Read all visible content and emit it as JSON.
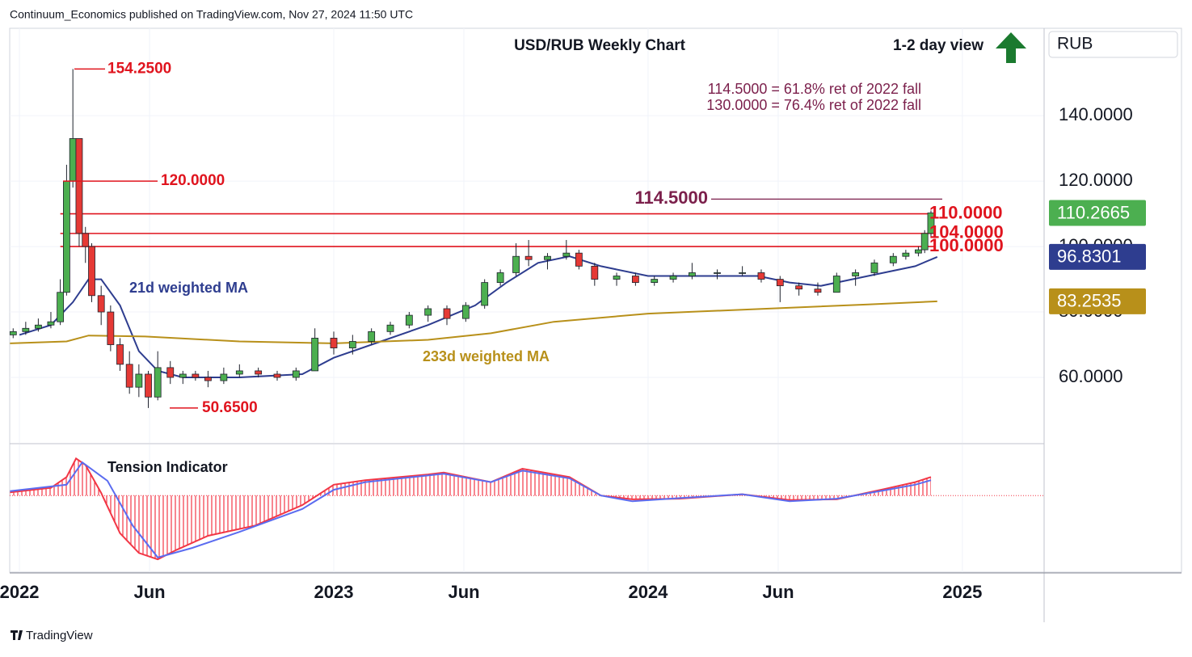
{
  "header": "Continuum_Economics published on TradingView.com, Nov 27, 2024 11:50 UTC",
  "footer": "TradingView",
  "chart_data": [
    {
      "type": "candlestick",
      "title": "USD/RUB Weekly Chart",
      "subtitle": "1-2 day view",
      "notes": [
        "114.5000 = 61.8% ret of 2022 fall",
        "130.0000 = 76.4% ret of 2022 fall"
      ],
      "axis_label": "RUB",
      "xlim": [
        2021.969,
        2025.26
      ],
      "xticks": [
        {
          "value": 2022,
          "label": "2022"
        },
        {
          "value": 2022.414,
          "label": "Jun"
        },
        {
          "value": 2023,
          "label": "2023"
        },
        {
          "value": 2023.414,
          "label": "Jun"
        },
        {
          "value": 2024,
          "label": "2024"
        },
        {
          "value": 2024.414,
          "label": "Jun"
        },
        {
          "value": 2025,
          "label": "2025"
        }
      ],
      "ylim": [
        40,
        166.7
      ],
      "yticks": [
        {
          "value": 60,
          "label": "60.0000"
        },
        {
          "value": 80,
          "label": "80.0000"
        },
        {
          "value": 100,
          "label": "100.0000"
        },
        {
          "value": 120,
          "label": "120.0000"
        },
        {
          "value": 140,
          "label": "140.0000"
        }
      ],
      "grid": true,
      "up_color": "#4caf50",
      "down_color": "#e53935",
      "x": [
        2021.98,
        2022.02,
        2022.06,
        2022.1,
        2022.13,
        2022.15,
        2022.17,
        2022.19,
        2022.21,
        2022.23,
        2022.26,
        2022.29,
        2022.32,
        2022.35,
        2022.38,
        2022.41,
        2022.44,
        2022.48,
        2022.52,
        2022.56,
        2022.6,
        2022.65,
        2022.7,
        2022.76,
        2022.82,
        2022.88,
        2022.94,
        2023.0,
        2023.06,
        2023.12,
        2023.18,
        2023.24,
        2023.3,
        2023.36,
        2023.42,
        2023.48,
        2023.53,
        2023.58,
        2023.62,
        2023.68,
        2023.74,
        2023.78,
        2023.83,
        2023.9,
        2023.96,
        2024.02,
        2024.08,
        2024.14,
        2024.22,
        2024.3,
        2024.36,
        2024.42,
        2024.48,
        2024.54,
        2024.6,
        2024.66,
        2024.72,
        2024.78,
        2024.82,
        2024.86,
        2024.88,
        2024.9
      ],
      "open": [
        73,
        74,
        75,
        76,
        77,
        86,
        120,
        133,
        104,
        100,
        85,
        80,
        70,
        64,
        57,
        61,
        54,
        63,
        60,
        61,
        60,
        59,
        61,
        62,
        61,
        60,
        62,
        72,
        69,
        71,
        74,
        76,
        79,
        81,
        78,
        82,
        89,
        92,
        97,
        96,
        97,
        98,
        94,
        90,
        91,
        89,
        90,
        91,
        92,
        92,
        92,
        90,
        88,
        87,
        86,
        91,
        92,
        95,
        97,
        98,
        99,
        104
      ],
      "high": [
        75,
        77,
        78,
        80,
        90,
        125,
        154.25,
        133,
        106,
        101,
        88,
        82,
        72,
        68,
        64,
        62,
        68,
        65,
        62,
        62,
        62,
        63,
        64,
        63,
        62,
        63,
        75,
        74,
        73,
        75,
        77,
        80,
        82,
        82,
        83,
        90,
        93,
        101,
        102,
        98,
        102,
        99,
        95,
        92,
        92,
        91,
        92,
        95,
        93,
        94,
        93,
        91,
        89,
        89,
        92,
        93,
        96,
        98,
        99,
        100,
        105,
        111
      ],
      "low": [
        72,
        73,
        74,
        75,
        76,
        85,
        118,
        100,
        95,
        83,
        76,
        68,
        62,
        55,
        54,
        50.65,
        53,
        58,
        58,
        59,
        57,
        58,
        60,
        60,
        59,
        59,
        62,
        67,
        67,
        70,
        73,
        75,
        77,
        76,
        77,
        81,
        88,
        91,
        94,
        93,
        96,
        93,
        88,
        88,
        88,
        88,
        89,
        90,
        90,
        91,
        89,
        83,
        85,
        85,
        86,
        88,
        91,
        94,
        96,
        97,
        98,
        103
      ],
      "close": [
        74,
        75,
        76,
        77,
        86,
        120,
        133,
        104,
        100,
        85,
        80,
        70,
        64,
        57,
        61,
        54,
        63,
        60,
        61,
        60,
        59,
        61,
        62,
        61,
        60,
        62,
        72,
        69,
        71,
        74,
        76,
        79,
        81,
        78,
        82,
        89,
        92,
        97,
        96,
        97,
        98,
        94,
        90,
        91,
        89,
        90,
        91,
        92,
        92,
        92,
        90,
        88,
        87,
        86,
        91,
        92,
        95,
        97,
        98,
        99,
        104,
        110.2665
      ],
      "last_label": "110.2665",
      "series": [
        {
          "name": "21d weighted MA",
          "color": "#2e3d8f",
          "last_label": "96.8301",
          "x": [
            2022.0,
            2022.1,
            2022.17,
            2022.22,
            2022.26,
            2022.32,
            2022.38,
            2022.44,
            2022.52,
            2022.7,
            2022.9,
            2023.0,
            2023.15,
            2023.3,
            2023.45,
            2023.55,
            2023.65,
            2023.75,
            2023.85,
            2024.0,
            2024.2,
            2024.35,
            2024.45,
            2024.55,
            2024.7,
            2024.85,
            2024.92
          ],
          "values": [
            73,
            76,
            83,
            90,
            90,
            82,
            68,
            62,
            60,
            60,
            61,
            66,
            71,
            76,
            82,
            89,
            95,
            97,
            94,
            91,
            91,
            91,
            89,
            88,
            91,
            94,
            96.8301
          ]
        },
        {
          "name": "233d weighted MA",
          "color": "#b8901a",
          "last_label": "83.2535",
          "x": [
            2021.97,
            2022.15,
            2022.22,
            2022.4,
            2022.7,
            2023.0,
            2023.3,
            2023.5,
            2023.7,
            2024.0,
            2024.5,
            2024.7,
            2024.92
          ],
          "values": [
            70.4,
            71,
            72.8,
            72.5,
            71,
            70.4,
            71.5,
            73.5,
            77,
            79.5,
            81.5,
            82.3,
            83.2535
          ]
        }
      ],
      "levels": [
        {
          "value": 114.5,
          "label": "114.5000",
          "color": "#7b1f4b"
        },
        {
          "value": 110,
          "label": "110.0000",
          "color": "#e0141e"
        },
        {
          "value": 104,
          "label": "104.0000",
          "color": "#e0141e"
        },
        {
          "value": 100,
          "label": "100.0000",
          "color": "#e0141e"
        }
      ],
      "markers": [
        {
          "value": 154.25,
          "label": "154.2500",
          "color": "#e0141e"
        },
        {
          "value": 120,
          "label": "120.0000",
          "color": "#e0141e"
        },
        {
          "value": 50.65,
          "label": "50.6500",
          "color": "#e0141e"
        }
      ]
    },
    {
      "type": "line",
      "title": "Tension Indicator",
      "ylim": [
        -1.2,
        0.8
      ],
      "series": [
        {
          "color": "#f23645",
          "x": [
            2021.97,
            2022.1,
            2022.15,
            2022.18,
            2022.21,
            2022.26,
            2022.32,
            2022.38,
            2022.44,
            2022.5,
            2022.6,
            2022.75,
            2022.9,
            2023.0,
            2023.1,
            2023.3,
            2023.35,
            2023.5,
            2023.6,
            2023.75,
            2023.85,
            2023.95,
            2024.1,
            2024.3,
            2024.45,
            2024.6,
            2024.75,
            2024.85,
            2024.9
          ],
          "values": [
            0.05,
            0.12,
            0.29,
            0.58,
            0.48,
            0.04,
            -0.59,
            -0.9,
            -1.0,
            -0.85,
            -0.63,
            -0.47,
            -0.15,
            0.17,
            0.24,
            0.33,
            0.36,
            0.21,
            0.42,
            0.29,
            0.0,
            -0.06,
            -0.05,
            0.02,
            -0.07,
            -0.06,
            0.1,
            0.21,
            0.29
          ]
        },
        {
          "color": "#5b6cf0",
          "x": [
            2021.97,
            2022.15,
            2022.2,
            2022.28,
            2022.36,
            2022.44,
            2022.55,
            2022.7,
            2022.9,
            2023.0,
            2023.1,
            2023.35,
            2023.5,
            2023.6,
            2023.75,
            2023.85,
            2023.95,
            2024.1,
            2024.3,
            2024.45,
            2024.6,
            2024.75,
            2024.85,
            2024.9
          ],
          "values": [
            0.07,
            0.17,
            0.52,
            0.23,
            -0.47,
            -0.97,
            -0.82,
            -0.57,
            -0.21,
            0.09,
            0.21,
            0.34,
            0.21,
            0.39,
            0.27,
            0.0,
            -0.09,
            -0.04,
            0.02,
            -0.09,
            -0.05,
            0.08,
            0.17,
            0.24
          ]
        }
      ]
    }
  ]
}
